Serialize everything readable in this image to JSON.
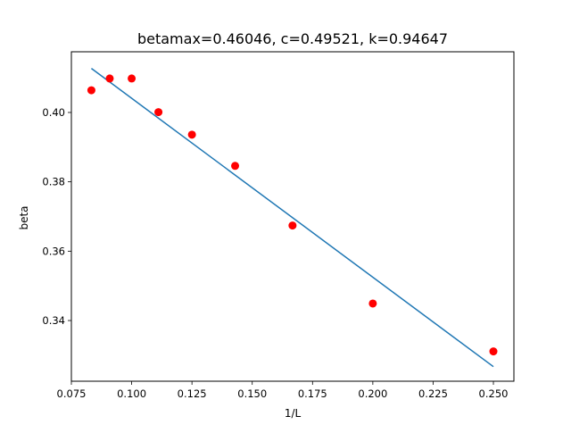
{
  "chart_data": {
    "type": "scatter",
    "title": "betamax=0.46046, c=0.49521, k=0.94647",
    "xlabel": "1/L",
    "ylabel": "beta",
    "xlim": [
      0.075,
      0.2585
    ],
    "ylim": [
      0.3225,
      0.4175
    ],
    "xticks": [
      "0.075",
      "0.100",
      "0.125",
      "0.150",
      "0.175",
      "0.200",
      "0.225",
      "0.250"
    ],
    "xtick_values": [
      0.075,
      0.1,
      0.125,
      0.15,
      0.175,
      0.2,
      0.225,
      0.25
    ],
    "yticks": [
      "0.34",
      "0.36",
      "0.38",
      "0.40"
    ],
    "ytick_values": [
      0.34,
      0.36,
      0.38,
      0.4
    ],
    "grid": false,
    "series": [
      {
        "kind": "points",
        "color": "#ff0000",
        "x": [
          0.0833,
          0.0909,
          0.1,
          0.1111,
          0.125,
          0.1429,
          0.1667,
          0.2,
          0.25
        ],
        "y": [
          0.4064,
          0.4098,
          0.4098,
          0.4001,
          0.3936,
          0.3846,
          0.3674,
          0.3449,
          0.3311
        ]
      },
      {
        "kind": "line",
        "color": "#1f77b4",
        "x": [
          0.0833,
          0.25
        ],
        "y": [
          0.4127,
          0.3267
        ]
      }
    ]
  }
}
